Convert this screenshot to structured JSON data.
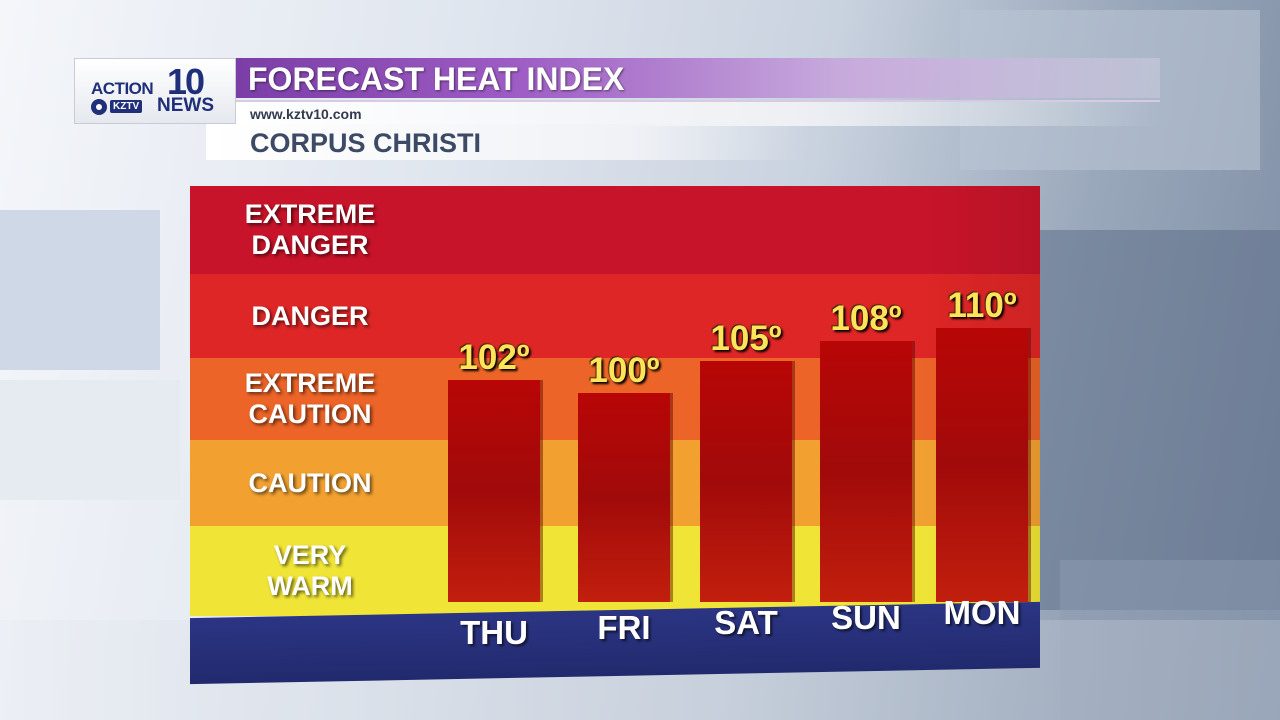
{
  "header": {
    "logo": {
      "action": "ACTION",
      "number": "10",
      "station": "KZTV",
      "news": "NEWS"
    },
    "title": "FORECAST HEAT INDEX",
    "url": "www.kztv10.com",
    "location": "CORPUS CHRISTI"
  },
  "chart_data": {
    "type": "bar",
    "title": "FORECAST HEAT INDEX",
    "categories": [
      "THU",
      "FRI",
      "SAT",
      "SUN",
      "MON"
    ],
    "values": [
      102,
      100,
      105,
      108,
      110
    ],
    "value_labels": [
      "102º",
      "100º",
      "105º",
      "108º",
      "110º"
    ],
    "unit": "°F",
    "bands": [
      {
        "label": "EXTREME DANGER",
        "lines": [
          "EXTREME",
          "DANGER"
        ],
        "from": 126,
        "to": 140,
        "color": "#c8142a"
      },
      {
        "label": "DANGER",
        "lines": [
          "DANGER"
        ],
        "from": 103,
        "to": 126,
        "color": "#df2626"
      },
      {
        "label": "EXTREME CAUTION",
        "lines": [
          "EXTREME",
          "CAUTION"
        ],
        "from": 90,
        "to": 103,
        "color": "#ec6428"
      },
      {
        "label": "CAUTION",
        "lines": [
          "CAUTION"
        ],
        "from": 80,
        "to": 90,
        "color": "#f2a131"
      },
      {
        "label": "VERY WARM",
        "lines": [
          "VERY",
          "WARM"
        ],
        "from": 70,
        "to": 80,
        "color": "#f0e536"
      }
    ],
    "ylim": [
      70,
      140
    ],
    "grid": false,
    "legend": "left"
  }
}
